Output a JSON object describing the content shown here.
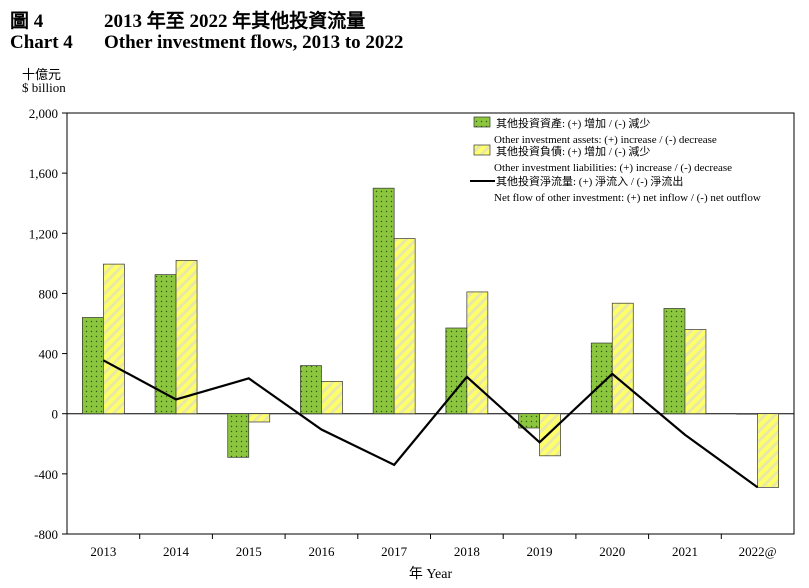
{
  "header": {
    "num_zh": "圖 4",
    "title_zh": "2013 年至 2022 年其他投資流量",
    "num_en": "Chart 4",
    "title_en": "Other investment flows, 2013 to 2022"
  },
  "units": {
    "zh": "十億元",
    "en": "$ billion"
  },
  "colors": {
    "assets": "#8cc63f",
    "liabilities": "#ffff66",
    "line": "#000000"
  },
  "chart_data": {
    "type": "bar",
    "categories": [
      "2013",
      "2014",
      "2015",
      "2016",
      "2017",
      "2018",
      "2019",
      "2020",
      "2021",
      "2022@"
    ],
    "series": [
      {
        "name_zh": "其他投資資產: (+) 增加 / (-) 減少",
        "name": "Other investment assets: (+) increase / (-) decrease",
        "values": [
          640,
          925,
          -290,
          320,
          1500,
          570,
          -95,
          470,
          700,
          0
        ]
      },
      {
        "name_zh": "其他投資負債: (+) 增加 / (-) 減少",
        "name": "Other investment liabilities: (+) increase / (-) decrease",
        "values": [
          995,
          1020,
          -55,
          215,
          1165,
          810,
          -280,
          735,
          560,
          -490
        ]
      },
      {
        "name_zh": "其他投資淨流量: (+) 淨流入 / (-) 淨流出",
        "name": "Net flow of other investment: (+) net inflow / (-) net outflow",
        "type": "line",
        "values": [
          355,
          95,
          235,
          -105,
          -340,
          245,
          -190,
          265,
          -140,
          -490
        ]
      }
    ],
    "ylim": [
      -800,
      2000
    ],
    "yticks": [
      "2,000",
      "1,600",
      "1,200",
      "800",
      "400",
      "0",
      "-400",
      "-800"
    ],
    "xlabel": "年 Year"
  }
}
